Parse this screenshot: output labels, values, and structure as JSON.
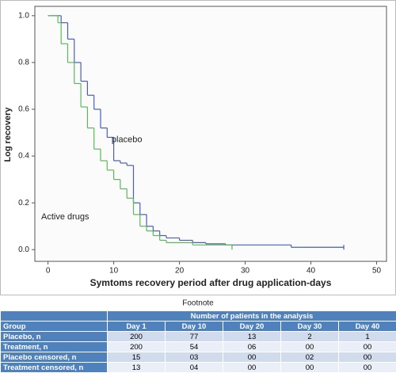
{
  "chart_data": {
    "type": "step",
    "xlabel": "Symtoms recovery period after drug application-days",
    "ylabel": "Log recovery",
    "annotations": [
      "placebo",
      "Active drugs"
    ],
    "xlim": [
      -2,
      51.5
    ],
    "ylim": [
      -0.05,
      1.04
    ],
    "xticks": [
      0,
      10,
      20,
      30,
      40,
      50
    ],
    "yticks": [
      {
        "value": 0,
        "label": "0.0"
      },
      0.2,
      0.4,
      0.6,
      0.8,
      {
        "value": 1,
        "label": "1.0"
      }
    ],
    "series": [
      {
        "name": "placebo",
        "color": "#4a5fb0",
        "x": [
          0,
          2,
          3,
          4,
          5,
          6,
          7,
          8,
          9,
          10,
          11,
          12,
          13,
          14,
          15,
          16,
          17,
          18,
          20,
          22,
          24,
          27,
          37,
          45
        ],
        "values": [
          1.0,
          0.97,
          0.9,
          0.8,
          0.72,
          0.66,
          0.6,
          0.52,
          0.48,
          0.38,
          0.37,
          0.36,
          0.2,
          0.15,
          0.1,
          0.08,
          0.06,
          0.05,
          0.04,
          0.03,
          0.025,
          0.02,
          0.01,
          0.01
        ]
      },
      {
        "name": "Active drugs",
        "color": "#5cb85c",
        "x": [
          0,
          1.5,
          2,
          3,
          4,
          5,
          6,
          7,
          8,
          9,
          10,
          11,
          12,
          13,
          14,
          15,
          16,
          17,
          18,
          22,
          28
        ],
        "values": [
          1.0,
          0.97,
          0.88,
          0.8,
          0.71,
          0.61,
          0.52,
          0.43,
          0.38,
          0.34,
          0.3,
          0.26,
          0.22,
          0.15,
          0.1,
          0.08,
          0.06,
          0.04,
          0.03,
          0.02,
          0.01
        ]
      }
    ]
  },
  "footnote": "Footnote",
  "table": {
    "super_header": "Number of patients in the analysis",
    "columns": [
      "Group",
      "Day 1",
      "Day 10",
      "Day 20",
      "Day 30",
      "Day 40"
    ],
    "rows": [
      [
        "Placebo, n",
        "200",
        "77",
        "13",
        "2",
        "1"
      ],
      [
        "Treatment, n",
        "200",
        "54",
        "06",
        "00",
        "00"
      ],
      [
        "Placebo censored, n",
        "15",
        "03",
        "00",
        "02",
        "00"
      ],
      [
        "Treatment censored, n",
        "13",
        "04",
        "00",
        "00",
        "00"
      ]
    ]
  }
}
